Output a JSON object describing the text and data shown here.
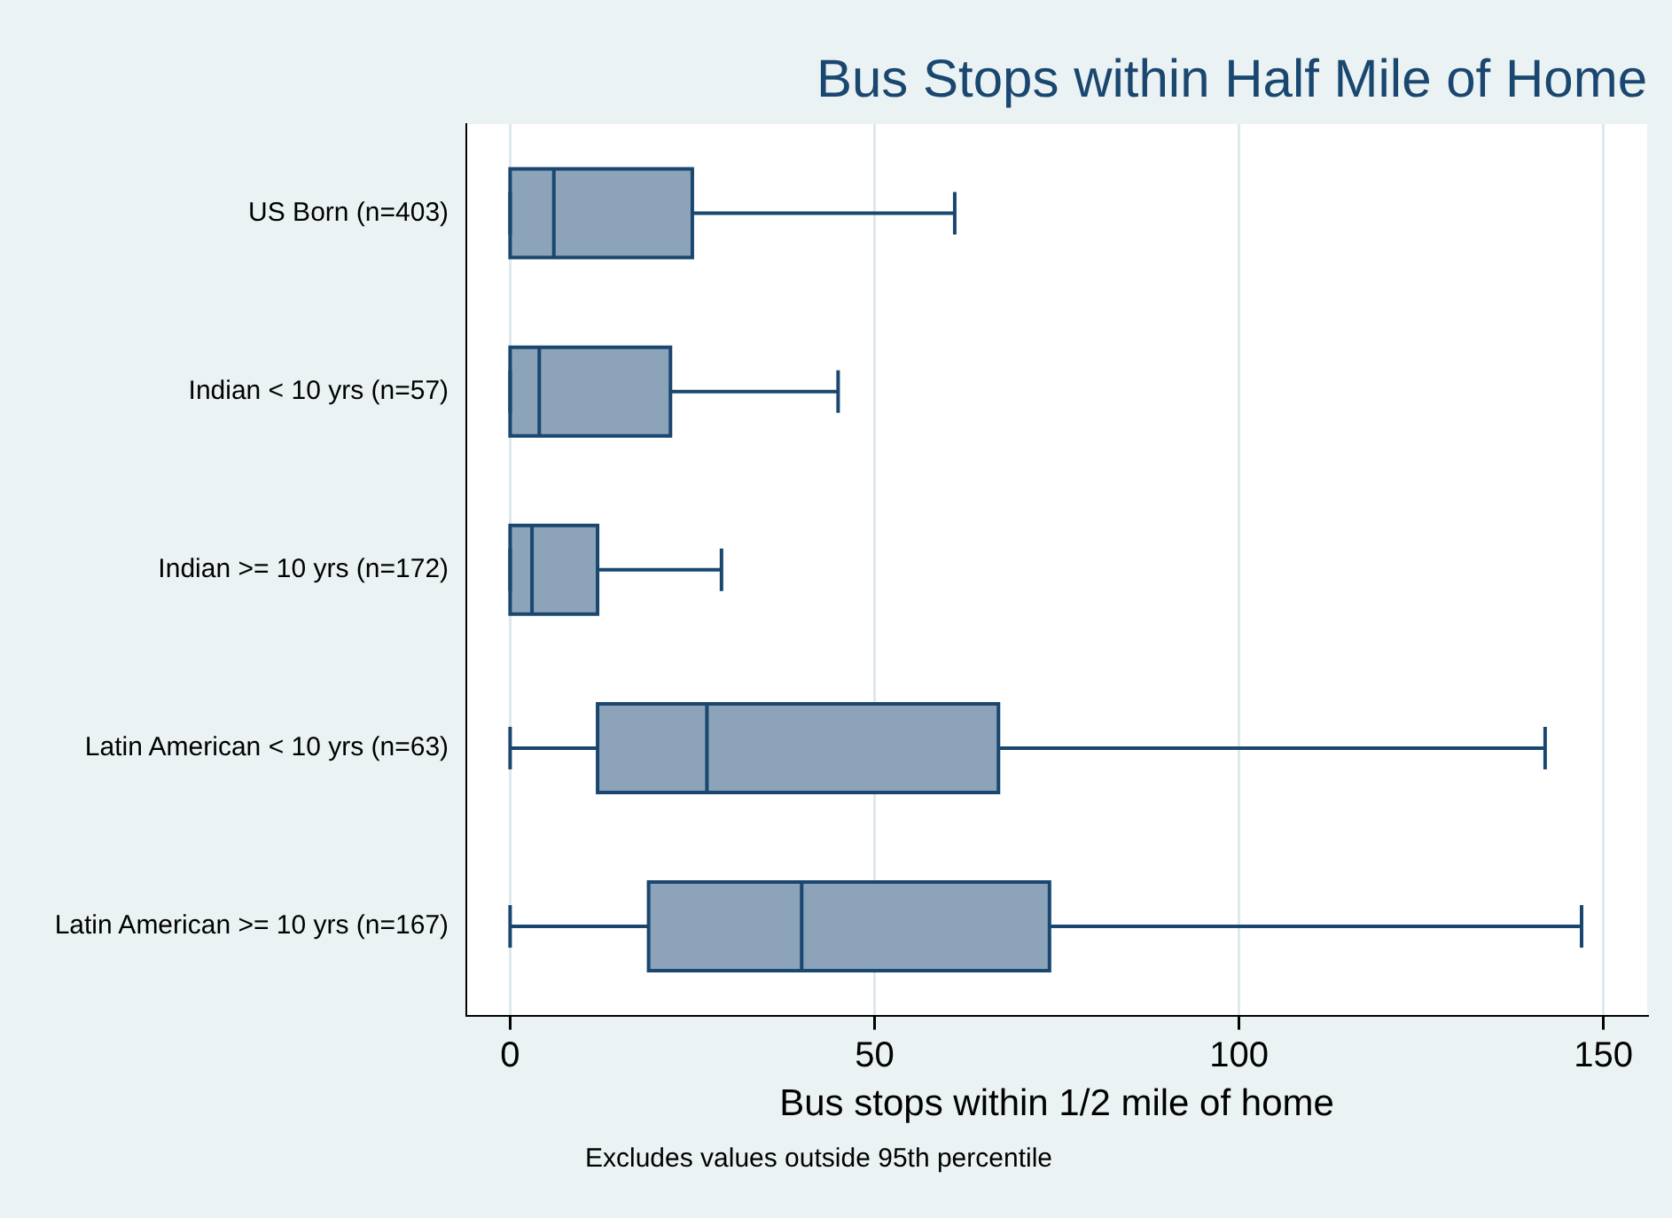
{
  "chart_data": {
    "type": "box",
    "title": "Bus Stops within Half Mile of Home",
    "xlabel": "Bus stops within 1/2 mile of home",
    "orientation": "horizontal",
    "categories": [
      "US Born (n=403)",
      "Indian < 10 yrs (n=57)",
      "Indian >= 10 yrs (n=172)",
      "Latin American < 10 yrs (n=63)",
      "Latin American >= 10 yrs (n=167)"
    ],
    "boxes": [
      {
        "low": 0,
        "q1": 0,
        "median": 6,
        "q3": 25,
        "high": 61
      },
      {
        "low": 0,
        "q1": 0,
        "median": 4,
        "q3": 22,
        "high": 45
      },
      {
        "low": 0,
        "q1": 0,
        "median": 3,
        "q3": 12,
        "high": 29
      },
      {
        "low": 0,
        "q1": 12,
        "median": 27,
        "q3": 67,
        "high": 142
      },
      {
        "low": 0,
        "q1": 19,
        "median": 40,
        "q3": 74,
        "high": 147
      }
    ],
    "color": "#8ca3b9",
    "xlim": [
      -6,
      156
    ],
    "xticks": [
      0,
      50,
      100,
      150
    ],
    "grid": "x",
    "legend": false,
    "annotations": [
      "Excludes values outside 95th percentile"
    ]
  }
}
